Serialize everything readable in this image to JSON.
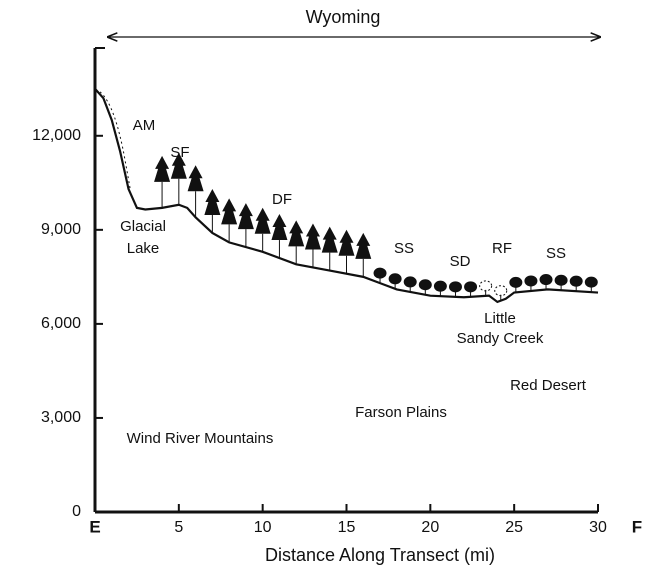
{
  "chart_data": {
    "type": "line",
    "x_label": "Distance Along Transect (mi)",
    "x": [
      0,
      0.5,
      1,
      1.5,
      2,
      2.5,
      3,
      4,
      5,
      5.5,
      6,
      7,
      8,
      10,
      12,
      14,
      16,
      18,
      20,
      22,
      23.5,
      24,
      24.5,
      25,
      27,
      30
    ],
    "values": [
      13500,
      13200,
      12500,
      11500,
      10300,
      9700,
      9650,
      9700,
      9800,
      9700,
      9400,
      8900,
      8600,
      8300,
      7900,
      7700,
      7500,
      7100,
      6900,
      6850,
      6900,
      6700,
      6800,
      7000,
      7100,
      7000
    ],
    "color": "#111111",
    "xlim": [
      0,
      30
    ],
    "xticks": [
      {
        "value": 0,
        "label": "E"
      },
      5,
      10,
      15,
      20,
      25,
      30
    ],
    "end_label": "F",
    "ylim": [
      0,
      14800
    ],
    "yticks": [
      0,
      {
        "value": 3000,
        "label": "3,000"
      },
      {
        "value": 6000,
        "label": "6,000"
      },
      {
        "value": 9000,
        "label": "9,000"
      },
      {
        "value": 12000,
        "label": "12,000"
      }
    ],
    "grid": false,
    "span_label": "Wyoming",
    "annotations": [
      "AM",
      "SF",
      "DF",
      "SS",
      "SD",
      "RF",
      "SS",
      "Glacial",
      "Lake",
      "Little",
      "Sandy Creek",
      "Red Desert",
      "Farson Plains",
      "Wind River Mountains"
    ]
  }
}
